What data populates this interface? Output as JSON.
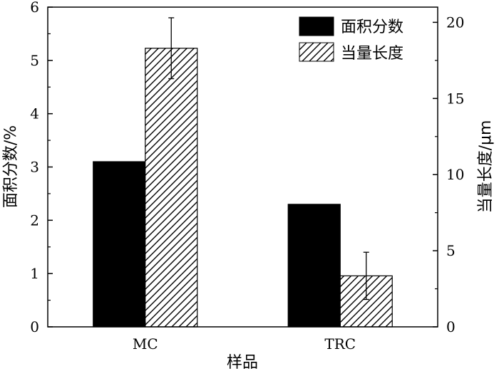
{
  "chart_data": {
    "type": "bar",
    "categories": [
      "MC",
      "TRC"
    ],
    "series": [
      {
        "name": "面积分数",
        "axis": "left",
        "values": [
          3.1,
          2.3
        ],
        "error": [
          null,
          null
        ],
        "color": "#000000",
        "pattern": "solid"
      },
      {
        "name": "当量长度",
        "axis": "right",
        "values": [
          18.3,
          3.35
        ],
        "error": [
          2.0,
          1.55
        ],
        "color": "#000000",
        "pattern": "hatched"
      }
    ],
    "xlabel": "样品",
    "ylabel_left": "面积分数/%",
    "ylabel_right": "当量长度/μm",
    "ylim_left": [
      0,
      6
    ],
    "ylim_right": [
      0,
      21
    ],
    "yticks_left": [
      0,
      1,
      2,
      3,
      4,
      5,
      6
    ],
    "yticks_right": [
      0,
      5,
      10,
      15,
      20
    ],
    "legend_position": "top-right",
    "grid": false
  }
}
